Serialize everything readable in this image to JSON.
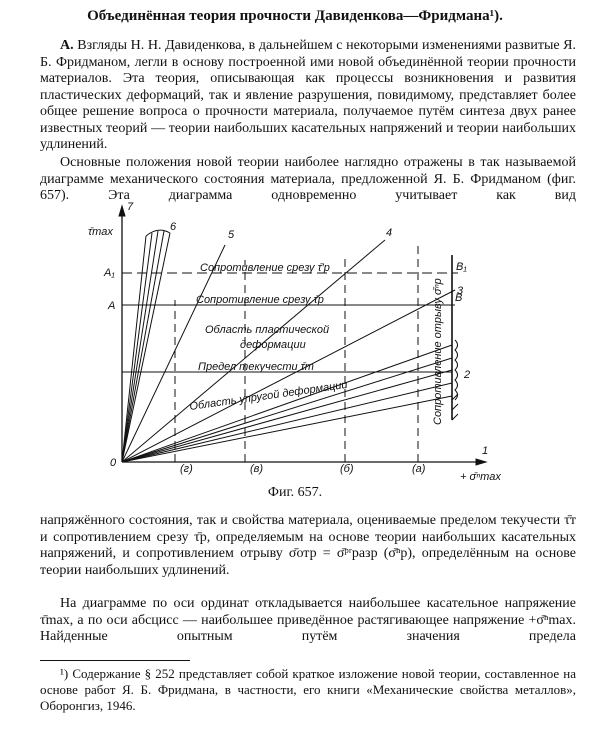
{
  "title": "Объединённая теория прочности Давиденкова—Фридмана¹).",
  "paragraphs": [
    {
      "lead": "А.",
      "text": "Взгляды Н. Н. Давиденкова, в дальнейшем с некоторыми изменениями развитые Я. Б. Фридманом, легли в основу построенной ими новой объединённой теории прочности материалов. Эта теория, описывающая как процессы возникновения и развития пластических деформаций, так и явление разрушения, повидимому, представляет более общее решение вопроса о прочности материала, получаемое путём синтеза двух ранее известных теорий — теории наибольших касательных напряжений и теории наибольших удлинений."
    },
    {
      "text": "Основные положения новой теории наиболее наглядно отражены в так называемой диаграмме механического состояния материала, предложенной Я. Б. Фридманом (фиг. 657). Эта диаграмма одновременно учитывает как вид"
    }
  ],
  "figure": {
    "y_axis_number": "7",
    "y_axis_label": "τ̄max",
    "origin": "0",
    "x_axis_number": "1",
    "x_axis_label": "+ σ̄ⁿmax",
    "line_numbers": [
      "6",
      "5",
      "4",
      "3",
      "2"
    ],
    "levels": [
      "A₁",
      "A",
      "B₁",
      "B"
    ],
    "verticals": [
      "(г)",
      "(в)",
      "(б)",
      "(а)"
    ],
    "regions": [
      "Сопротивление срезу τ̄′р",
      "Сопротивление срезу τ̄р",
      "Область пластической",
      "деформации",
      "Предел текучести τ̄т",
      "Область упругой деформации",
      "Сопротивление отрыву σ̄ⁿр"
    ],
    "caption": "Фиг. 657."
  },
  "continuation": [
    "напряжённого состояния, так и свойства материала, оцениваемые пределом текучести τ̄т и сопротивлением срезу τ̄р, определяемым на основе теории наибольших касательных напряжений, и сопротивлением отрыву σ̄отр = σ̄ᵖʳразр (σ̄ⁿр), определённым на основе теории наибольших удлинений.",
    "На диаграмме по оси ординат откладывается наибольшее касательное напряжение τ̄max, а по оси абсцисс — наибольшее приведённое растягивающее напряжение +σ̄ⁿmax. Найденные опытным путём значения предела"
  ],
  "footnote": "¹) Содержание § 252 представляет собой краткое изложение новой теории, составленное на основе работ Я. Б. Фридмана, в частности, его книги «Механические свойства металлов», Оборонгиз, 1946."
}
